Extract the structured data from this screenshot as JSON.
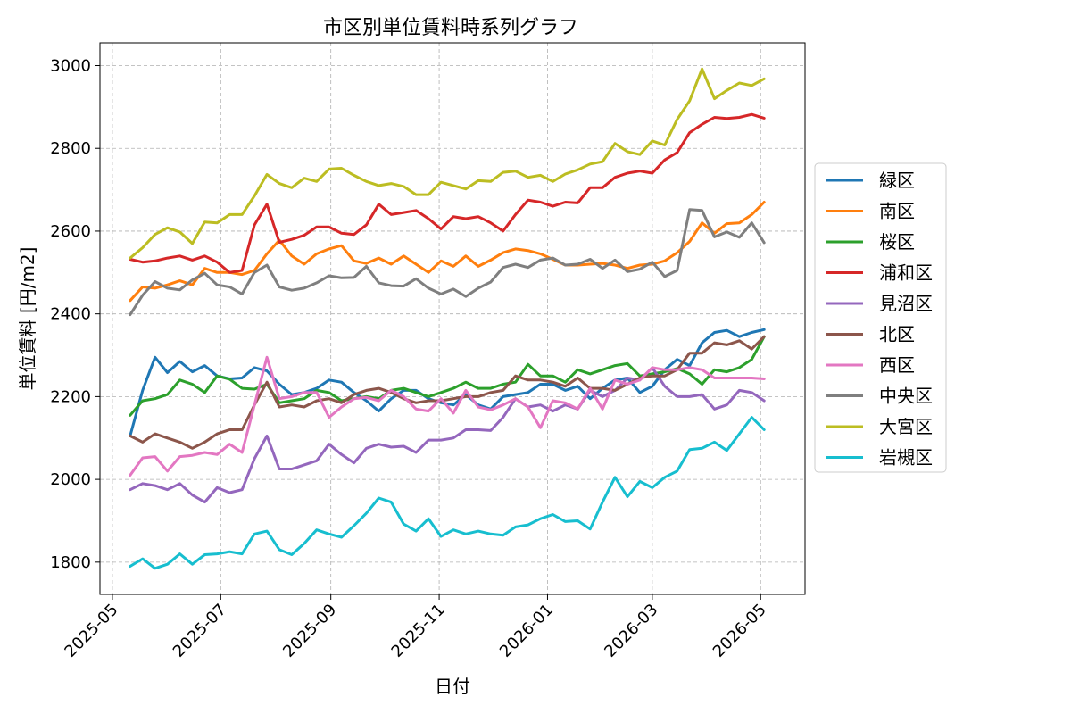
{
  "chart_data": {
    "type": "line",
    "title": "市区別単位賃料時系列グラフ",
    "xlabel": "日付",
    "ylabel": "単位賃料 [円/m2]",
    "x_ticks": [
      "2025-05",
      "2025-07",
      "2025-09",
      "2025-11",
      "2026-01",
      "2026-03",
      "2026-05"
    ],
    "y_ticks": [
      1800,
      2000,
      2200,
      2400,
      2600,
      2800,
      3000
    ],
    "xlim": [
      "2025-04-24",
      "2026-05-26"
    ],
    "ylim": [
      1722,
      3055
    ],
    "grid": true,
    "legend_position": "right",
    "x": [
      "2025-05-11",
      "2025-05-18",
      "2025-05-25",
      "2025-06-01",
      "2025-06-08",
      "2025-06-15",
      "2025-06-22",
      "2025-06-29",
      "2025-07-06",
      "2025-07-13",
      "2025-07-20",
      "2025-07-27",
      "2025-08-03",
      "2025-08-10",
      "2025-08-17",
      "2025-08-24",
      "2025-08-31",
      "2025-09-07",
      "2025-09-14",
      "2025-09-21",
      "2025-09-28",
      "2025-10-05",
      "2025-10-12",
      "2025-10-19",
      "2025-10-26",
      "2025-11-02",
      "2025-11-09",
      "2025-11-16",
      "2025-11-23",
      "2025-11-30",
      "2025-12-07",
      "2025-12-14",
      "2025-12-21",
      "2025-12-28",
      "2026-01-04",
      "2026-01-11",
      "2026-01-18",
      "2026-01-25",
      "2026-02-01",
      "2026-02-08",
      "2026-02-15",
      "2026-02-22",
      "2026-03-01",
      "2026-03-08",
      "2026-03-15",
      "2026-03-22",
      "2026-03-29",
      "2026-04-05",
      "2026-04-12",
      "2026-04-19",
      "2026-04-26",
      "2026-05-03"
    ],
    "series": [
      {
        "name": "緑区",
        "color": "#1f77b4",
        "values": [
          2105,
          2215,
          2295,
          2258,
          2285,
          2260,
          2275,
          2250,
          2243,
          2245,
          2270,
          2262,
          2230,
          2205,
          2210,
          2220,
          2240,
          2235,
          2210,
          2190,
          2165,
          2195,
          2215,
          2215,
          2195,
          2185,
          2180,
          2205,
          2180,
          2170,
          2200,
          2205,
          2210,
          2230,
          2230,
          2215,
          2225,
          2195,
          2220,
          2240,
          2245,
          2210,
          2225,
          2265,
          2290,
          2275,
          2330,
          2355,
          2360,
          2345,
          2355,
          2362
        ]
      },
      {
        "name": "南区",
        "color": "#ff7f0e",
        "values": [
          2432,
          2465,
          2462,
          2470,
          2480,
          2470,
          2510,
          2500,
          2500,
          2495,
          2505,
          2545,
          2578,
          2540,
          2520,
          2545,
          2557,
          2565,
          2528,
          2522,
          2535,
          2520,
          2540,
          2520,
          2500,
          2528,
          2515,
          2540,
          2515,
          2530,
          2548,
          2557,
          2553,
          2545,
          2532,
          2518,
          2518,
          2520,
          2522,
          2518,
          2510,
          2518,
          2520,
          2528,
          2548,
          2575,
          2620,
          2595,
          2618,
          2620,
          2640,
          2670
        ]
      },
      {
        "name": "桜区",
        "color": "#2ca02c",
        "values": [
          2155,
          2190,
          2195,
          2205,
          2240,
          2230,
          2210,
          2250,
          2242,
          2220,
          2218,
          2230,
          2185,
          2190,
          2195,
          2215,
          2210,
          2190,
          2195,
          2200,
          2195,
          2215,
          2220,
          2210,
          2200,
          2210,
          2220,
          2235,
          2220,
          2220,
          2230,
          2235,
          2278,
          2250,
          2250,
          2235,
          2265,
          2255,
          2265,
          2275,
          2280,
          2250,
          2255,
          2260,
          2268,
          2255,
          2230,
          2265,
          2260,
          2270,
          2290,
          2345
        ]
      },
      {
        "name": "浦和区",
        "color": "#d62728",
        "values": [
          2532,
          2525,
          2528,
          2535,
          2540,
          2530,
          2540,
          2525,
          2500,
          2505,
          2615,
          2665,
          2573,
          2580,
          2590,
          2610,
          2610,
          2595,
          2592,
          2615,
          2665,
          2640,
          2645,
          2650,
          2630,
          2605,
          2635,
          2630,
          2635,
          2620,
          2600,
          2640,
          2675,
          2670,
          2660,
          2670,
          2668,
          2705,
          2705,
          2730,
          2740,
          2745,
          2740,
          2772,
          2790,
          2838,
          2858,
          2875,
          2872,
          2875,
          2882,
          2873
        ]
      },
      {
        "name": "見沼区",
        "color": "#9467bd",
        "values": [
          1975,
          1990,
          1985,
          1975,
          1990,
          1962,
          1945,
          1980,
          1968,
          1975,
          2050,
          2105,
          2025,
          2025,
          2035,
          2045,
          2085,
          2060,
          2040,
          2075,
          2085,
          2078,
          2080,
          2065,
          2095,
          2095,
          2100,
          2120,
          2120,
          2118,
          2150,
          2195,
          2175,
          2180,
          2165,
          2180,
          2170,
          2215,
          2200,
          2215,
          2245,
          2240,
          2270,
          2225,
          2200,
          2200,
          2205,
          2170,
          2180,
          2215,
          2210,
          2190
        ]
      },
      {
        "name": "北区",
        "color": "#8c564b",
        "values": [
          2105,
          2090,
          2110,
          2100,
          2090,
          2075,
          2090,
          2110,
          2120,
          2120,
          2180,
          2235,
          2175,
          2180,
          2175,
          2190,
          2195,
          2185,
          2205,
          2215,
          2220,
          2210,
          2195,
          2185,
          2190,
          2190,
          2195,
          2200,
          2200,
          2210,
          2215,
          2250,
          2240,
          2240,
          2235,
          2225,
          2245,
          2220,
          2220,
          2215,
          2230,
          2245,
          2250,
          2250,
          2265,
          2305,
          2305,
          2330,
          2325,
          2335,
          2315,
          2345
        ]
      },
      {
        "name": "西区",
        "color": "#e377c2",
        "values": [
          2010,
          2052,
          2055,
          2020,
          2055,
          2058,
          2065,
          2060,
          2085,
          2065,
          2180,
          2295,
          2195,
          2200,
          2210,
          2210,
          2150,
          2175,
          2195,
          2198,
          2190,
          2215,
          2200,
          2170,
          2165,
          2195,
          2160,
          2215,
          2175,
          2168,
          2180,
          2195,
          2175,
          2125,
          2190,
          2185,
          2170,
          2220,
          2170,
          2240,
          2230,
          2240,
          2270,
          2265,
          2265,
          2270,
          2265,
          2245,
          2245,
          2245,
          2245,
          2243
        ]
      },
      {
        "name": "中央区",
        "color": "#7f7f7f",
        "values": [
          2398,
          2445,
          2478,
          2462,
          2458,
          2482,
          2498,
          2470,
          2465,
          2448,
          2500,
          2518,
          2465,
          2457,
          2462,
          2475,
          2492,
          2487,
          2488,
          2515,
          2475,
          2468,
          2467,
          2485,
          2462,
          2448,
          2460,
          2442,
          2462,
          2477,
          2512,
          2520,
          2512,
          2530,
          2535,
          2518,
          2520,
          2532,
          2510,
          2530,
          2502,
          2508,
          2525,
          2490,
          2505,
          2652,
          2650,
          2586,
          2598,
          2585,
          2620,
          2572
        ]
      },
      {
        "name": "大宮区",
        "color": "#bcbd22",
        "values": [
          2535,
          2560,
          2592,
          2608,
          2598,
          2570,
          2622,
          2620,
          2640,
          2640,
          2685,
          2737,
          2715,
          2705,
          2728,
          2720,
          2750,
          2752,
          2735,
          2720,
          2710,
          2715,
          2708,
          2688,
          2688,
          2718,
          2710,
          2702,
          2722,
          2720,
          2742,
          2745,
          2730,
          2735,
          2720,
          2738,
          2748,
          2762,
          2768,
          2812,
          2792,
          2785,
          2818,
          2808,
          2870,
          2915,
          2992,
          2920,
          2940,
          2958,
          2952,
          2968
        ]
      },
      {
        "name": "岩槻区",
        "color": "#17becf",
        "values": [
          1790,
          1808,
          1785,
          1795,
          1820,
          1795,
          1818,
          1820,
          1825,
          1820,
          1868,
          1875,
          1830,
          1818,
          1845,
          1878,
          1868,
          1860,
          1888,
          1918,
          1955,
          1945,
          1892,
          1875,
          1905,
          1862,
          1878,
          1868,
          1875,
          1868,
          1865,
          1885,
          1890,
          1905,
          1915,
          1898,
          1900,
          1880,
          1945,
          2005,
          1958,
          1995,
          1980,
          2005,
          2020,
          2072,
          2075,
          2090,
          2070,
          2110,
          2150,
          2120
        ]
      }
    ]
  }
}
